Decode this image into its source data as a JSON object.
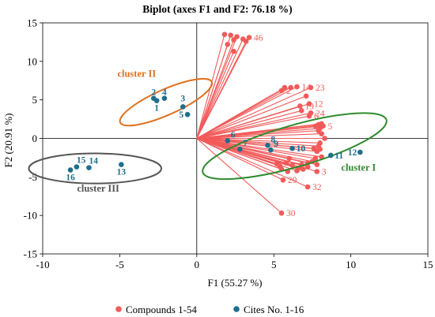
{
  "chart_data": {
    "type": "scatter",
    "title": "Biplot (axes F1 and F2: 76.18 %)",
    "xlabel": "F1 (55.27 %)",
    "ylabel": "F2 (20.91 %)",
    "xlim": [
      -10,
      15
    ],
    "ylim": [
      -15,
      15
    ],
    "x_ticks": [
      -10,
      -5,
      0,
      5,
      10,
      15
    ],
    "y_ticks": [
      -15,
      -10,
      -5,
      0,
      5,
      10,
      15
    ],
    "grid": false,
    "origin_lines": true,
    "legend_position": "bottom",
    "colors": {
      "compounds": "#f25a5a",
      "sites": "#1f6e8c",
      "cluster_I": "#2e8b2e",
      "cluster_II": "#e07020",
      "cluster_III": "#555555"
    },
    "series": [
      {
        "name": "Compounds 1-54",
        "style": "vectors from origin",
        "points": [
          {
            "x": 1.8,
            "y": 13.5,
            "label": ""
          },
          {
            "x": 2.2,
            "y": 13.4,
            "label": ""
          },
          {
            "x": 2.6,
            "y": 13.2,
            "label": ""
          },
          {
            "x": 3.0,
            "y": 12.9,
            "label": ""
          },
          {
            "x": 3.2,
            "y": 12.6,
            "label": ""
          },
          {
            "x": 2.4,
            "y": 12.8,
            "label": ""
          },
          {
            "x": 2.0,
            "y": 12.2,
            "label": ""
          },
          {
            "x": 2.4,
            "y": 11.3,
            "label": ""
          },
          {
            "x": 3.4,
            "y": 13.1,
            "label": "46"
          },
          {
            "x": 5.5,
            "y": 6.2,
            "label": "2"
          },
          {
            "x": 5.7,
            "y": 6.6,
            "label": ""
          },
          {
            "x": 6.1,
            "y": 6.6,
            "label": ""
          },
          {
            "x": 6.5,
            "y": 6.7,
            "label": "14"
          },
          {
            "x": 7.4,
            "y": 6.6,
            "label": "23"
          },
          {
            "x": 7.1,
            "y": 5.5,
            "label": ""
          },
          {
            "x": 6.7,
            "y": 4.2,
            "label": "19"
          },
          {
            "x": 7.3,
            "y": 4.5,
            "label": "12"
          },
          {
            "x": 6.8,
            "y": 3.6,
            "label": ""
          },
          {
            "x": 7.3,
            "y": 2.9,
            "label": "6"
          },
          {
            "x": 7.4,
            "y": 3.3,
            "label": "24"
          },
          {
            "x": 7.7,
            "y": 1.6,
            "label": ""
          },
          {
            "x": 7.9,
            "y": 1.8,
            "label": ""
          },
          {
            "x": 8.1,
            "y": 1.9,
            "label": ""
          },
          {
            "x": 8.2,
            "y": 1.6,
            "label": "5"
          },
          {
            "x": 8.0,
            "y": 1.3,
            "label": ""
          },
          {
            "x": 7.9,
            "y": 1.0,
            "label": ""
          },
          {
            "x": 8.1,
            "y": 0.6,
            "label": ""
          },
          {
            "x": 8.3,
            "y": 0.0,
            "label": ""
          },
          {
            "x": 8.0,
            "y": -0.6,
            "label": ""
          },
          {
            "x": 7.9,
            "y": -1.0,
            "label": ""
          },
          {
            "x": 8.0,
            "y": -1.4,
            "label": ""
          },
          {
            "x": 7.6,
            "y": -1.3,
            "label": ""
          },
          {
            "x": 7.8,
            "y": -1.7,
            "label": ""
          },
          {
            "x": 8.1,
            "y": -2.4,
            "label": ""
          },
          {
            "x": 7.7,
            "y": -2.6,
            "label": ""
          },
          {
            "x": 7.5,
            "y": -3.0,
            "label": ""
          },
          {
            "x": 7.8,
            "y": -3.4,
            "label": ""
          },
          {
            "x": 7.2,
            "y": -3.2,
            "label": ""
          },
          {
            "x": 6.8,
            "y": -3.4,
            "label": ""
          },
          {
            "x": 7.2,
            "y": -3.7,
            "label": ""
          },
          {
            "x": 7.8,
            "y": -4.3,
            "label": "3"
          },
          {
            "x": 6.5,
            "y": -4.2,
            "label": ""
          },
          {
            "x": 6.2,
            "y": -3.5,
            "label": ""
          },
          {
            "x": 6.6,
            "y": -3.9,
            "label": ""
          },
          {
            "x": 5.9,
            "y": -4.3,
            "label": ""
          },
          {
            "x": 6.9,
            "y": -4.0,
            "label": ""
          },
          {
            "x": 5.8,
            "y": -3.2,
            "label": ""
          },
          {
            "x": 5.5,
            "y": -4.0,
            "label": ""
          },
          {
            "x": 5.4,
            "y": -3.6,
            "label": ""
          },
          {
            "x": 5.2,
            "y": -3.3,
            "label": ""
          },
          {
            "x": 6.0,
            "y": -2.6,
            "label": ""
          },
          {
            "x": 5.6,
            "y": -5.4,
            "label": "29"
          },
          {
            "x": 7.2,
            "y": -6.3,
            "label": "32"
          },
          {
            "x": 5.5,
            "y": -9.7,
            "label": "30"
          }
        ]
      },
      {
        "name": "Cites No. 1-16",
        "points": [
          {
            "x": -2.6,
            "y": 4.9,
            "label": "1"
          },
          {
            "x": -2.8,
            "y": 5.2,
            "label": "2"
          },
          {
            "x": -0.9,
            "y": 4.1,
            "label": "3"
          },
          {
            "x": -2.1,
            "y": 5.2,
            "label": "4"
          },
          {
            "x": -0.6,
            "y": 3.1,
            "label": "5"
          },
          {
            "x": 2.0,
            "y": -0.3,
            "label": "6"
          },
          {
            "x": 2.8,
            "y": -1.4,
            "label": "7"
          },
          {
            "x": 4.6,
            "y": -0.9,
            "label": "8"
          },
          {
            "x": 4.8,
            "y": -1.5,
            "label": "9"
          },
          {
            "x": 6.2,
            "y": -1.3,
            "label": "10"
          },
          {
            "x": 8.7,
            "y": -2.2,
            "label": "11"
          },
          {
            "x": 10.6,
            "y": -1.8,
            "label": "12"
          },
          {
            "x": -4.9,
            "y": -3.4,
            "label": "13"
          },
          {
            "x": -7.0,
            "y": -3.8,
            "label": "14"
          },
          {
            "x": -7.8,
            "y": -3.7,
            "label": "15"
          },
          {
            "x": -8.2,
            "y": -4.1,
            "label": "16"
          }
        ]
      }
    ],
    "annotations": [
      {
        "text": "cluster I",
        "x": 10.5,
        "y": -4.2,
        "color": "cluster_I"
      },
      {
        "text": "cluster II",
        "x": -3.9,
        "y": 8.0,
        "color": "cluster_II"
      },
      {
        "text": "cluster III",
        "x": -6.4,
        "y": -6.9,
        "color": "cluster_III"
      }
    ],
    "ellipses": [
      {
        "name": "cluster I",
        "cx": 6.35,
        "cy": -1.0,
        "rx": 6.2,
        "ry": 2.7,
        "angle": -16,
        "color": "cluster_I"
      },
      {
        "name": "cluster II",
        "cx": -2.0,
        "cy": 4.7,
        "rx": 3.25,
        "ry": 1.65,
        "angle": -24,
        "color": "cluster_II"
      },
      {
        "name": "cluster III",
        "cx": -6.6,
        "cy": -3.9,
        "rx": 4.3,
        "ry": 1.95,
        "angle": 0,
        "color": "cluster_III"
      }
    ]
  }
}
